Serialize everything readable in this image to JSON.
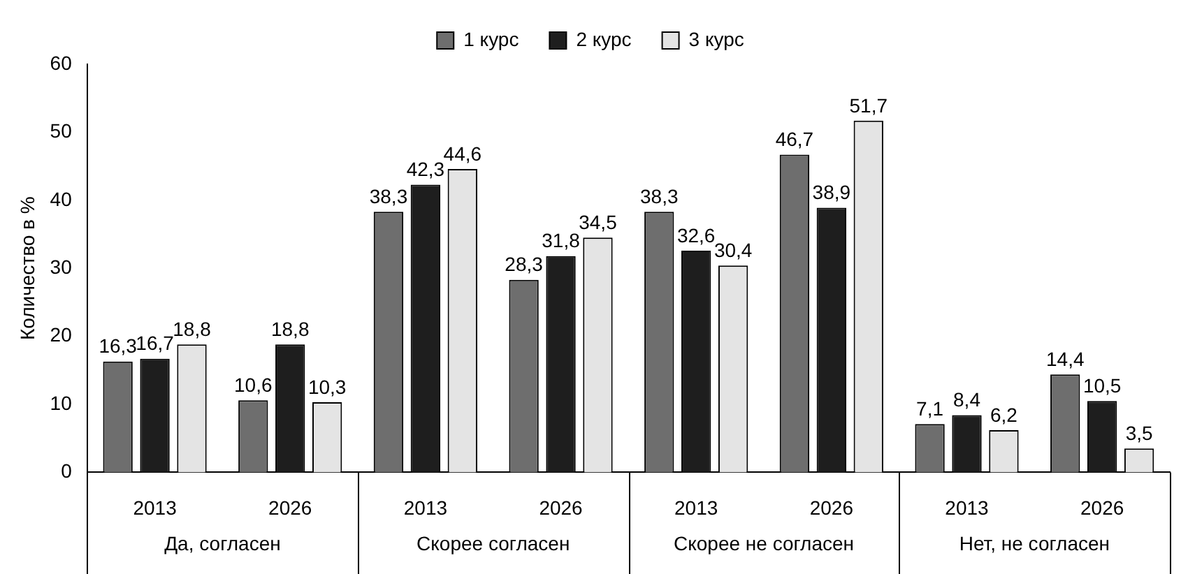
{
  "chart_data": {
    "type": "bar",
    "ylabel": "Количество в %",
    "categories": [
      "2013",
      "2026",
      "2013",
      "2026",
      "2013",
      "2026",
      "2013",
      "2026"
    ],
    "annotations": [
      "Да, согласен",
      "Скорее согласен",
      "Скорее не согласен",
      "Нет, не согласен"
    ],
    "series": [
      {
        "name": "1 курс",
        "color": "#6e6e6e",
        "values": [
          16.3,
          10.6,
          38.3,
          28.3,
          38.3,
          46.7,
          7.1,
          14.4
        ],
        "value_labels": [
          "16,3",
          "10,6",
          "38,3",
          "28,3",
          "38,3",
          "46,7",
          "7,1",
          "14,4"
        ]
      },
      {
        "name": "2 курс",
        "color": "#1e1e1e",
        "values": [
          16.7,
          18.8,
          42.3,
          31.8,
          32.6,
          38.9,
          8.4,
          10.5
        ],
        "value_labels": [
          "16,7",
          "18,8",
          "42,3",
          "31,8",
          "32,6",
          "38,9",
          "8,4",
          "10,5"
        ]
      },
      {
        "name": "3 курс",
        "color": "#e4e4e4",
        "values": [
          18.8,
          10.3,
          44.6,
          34.5,
          30.4,
          51.7,
          6.2,
          3.5
        ],
        "value_labels": [
          "18,8",
          "10,3",
          "44,6",
          "34,5",
          "30,4",
          "51,7",
          "6,2",
          "3,5"
        ]
      }
    ],
    "ylim": [
      0,
      60
    ],
    "yticks": [
      0,
      10,
      20,
      30,
      40,
      50,
      60
    ],
    "grid": false,
    "legend": "top"
  }
}
